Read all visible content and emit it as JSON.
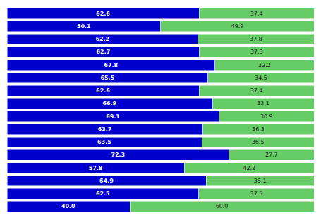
{
  "chart_data": {
    "type": "bar",
    "orientation": "horizontal",
    "stacked": true,
    "categories": [
      null,
      null,
      null,
      null,
      null,
      null,
      null,
      null,
      null,
      null,
      null,
      null,
      null,
      null,
      null,
      null
    ],
    "series": [
      {
        "color": "#0000cc",
        "values": [
          62.6,
          50.1,
          62.2,
          62.7,
          67.8,
          65.5,
          62.6,
          66.9,
          69.1,
          63.7,
          63.5,
          72.3,
          57.8,
          64.9,
          62.5,
          40.0
        ],
        "value_labels": [
          "62.6",
          "50.1",
          "62.2",
          "62.7",
          "67.8",
          "65.5",
          "62.6",
          "66.9",
          "69.1",
          "63.7",
          "63.5",
          "72.3",
          "57.8",
          "64.9",
          "62.5",
          "40.0"
        ]
      },
      {
        "color": "#66cc66",
        "values": [
          37.4,
          49.9,
          37.8,
          37.3,
          32.2,
          34.5,
          37.4,
          33.1,
          30.9,
          36.3,
          36.5,
          27.7,
          42.2,
          35.1,
          37.5,
          60.0
        ],
        "value_labels": [
          "37.4",
          "49.9",
          "37.8",
          "37.3",
          "32.2",
          "34.5",
          "37.4",
          "33.1",
          "30.9",
          "36.3",
          "36.5",
          "27.7",
          "42.2",
          "35.1",
          "37.5",
          "60.0"
        ]
      }
    ],
    "xlim": [
      0,
      100
    ],
    "data_labels": true,
    "tick_labels": false,
    "grid": false
  }
}
